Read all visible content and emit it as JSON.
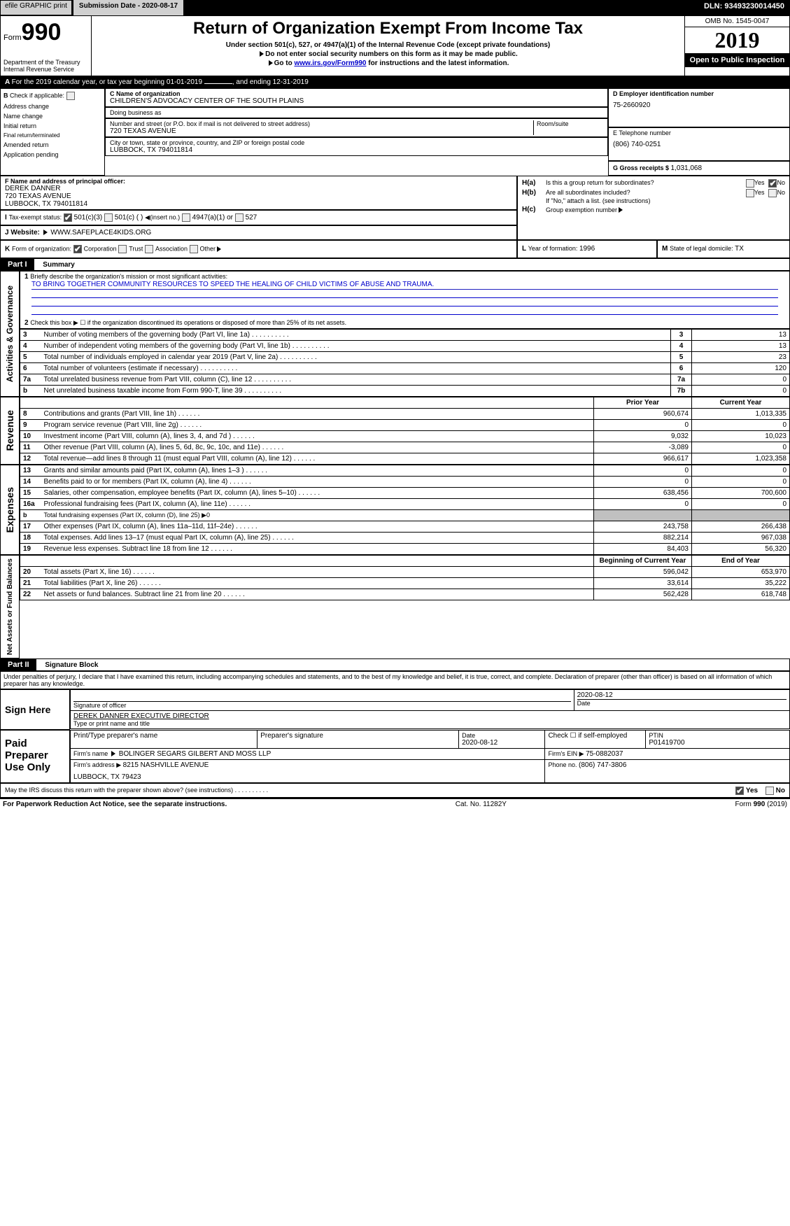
{
  "topbar": {
    "efile": "efile GRAPHIC print",
    "subdate_label": "Submission Date - 2020-08-17",
    "dln_label": "DLN: 93493230014450"
  },
  "formheader": {
    "formword": "Form",
    "formno": "990",
    "dept1": "Department of the Treasury",
    "dept2": "Internal Revenue Service",
    "title": "Return of Organization Exempt From Income Tax",
    "sub1": "Under section 501(c), 527, or 4947(a)(1) of the Internal Revenue Code (except private foundations)",
    "sub2": "Do not enter social security numbers on this form as it may be made public.",
    "sub3_pre": "Go to ",
    "sub3_link": "www.irs.gov/Form990",
    "sub3_post": " for instructions and the latest information.",
    "omb": "OMB No. 1545-0047",
    "year": "2019",
    "open": "Open to Public Inspection"
  },
  "lineA": {
    "text": "For the 2019 calendar year, or tax year beginning 01-01-2019",
    "end": ", and ending 12-31-2019"
  },
  "B": {
    "label": "Check if applicable:",
    "o1": "Address change",
    "o2": "Name change",
    "o3": "Initial return",
    "o4": "Final return/terminated",
    "o5": "Amended return",
    "o6": "Application pending"
  },
  "C": {
    "namelabel": "C Name of organization",
    "name": "CHILDREN'S ADVOCACY CENTER OF THE SOUTH PLAINS",
    "dba": "Doing business as",
    "addrlabel": "Number and street (or P.O. box if mail is not delivered to street address)",
    "roomlabel": "Room/suite",
    "addr": "720 TEXAS AVENUE",
    "citylabel": "City or town, state or province, country, and ZIP or foreign postal code",
    "city": "LUBBOCK, TX  794011814"
  },
  "D": {
    "label": "D Employer identification number",
    "value": "75-2660920"
  },
  "E": {
    "label": "E Telephone number",
    "value": "(806) 740-0251"
  },
  "F": {
    "label": "F Name and address of principal officer:",
    "name": "DEREK DANNER",
    "addr": "720 TEXAS AVENUE",
    "city": "LUBBOCK, TX  794011814"
  },
  "G": {
    "label": "G Gross receipts $ ",
    "value": "1,031,068"
  },
  "H": {
    "a_label": "Is this a group return for subordinates?",
    "b_label": "Are all subordinates included?",
    "b_note": "If \"No,\" attach a list. (see instructions)",
    "c_label": "Group exemption number",
    "yes": "Yes",
    "no": "No",
    "Ha": "H(a)",
    "Hb": "H(b)",
    "Hc": "H(c)"
  },
  "I": {
    "label": "Tax-exempt status:",
    "o1": "501(c)(3)",
    "o2": "501(c) (  )",
    "o2note": "(insert no.)",
    "o3": "4947(a)(1) or",
    "o4": "527"
  },
  "J": {
    "label": "Website:",
    "value": "WWW.SAFEPLACE4KIDS.ORG"
  },
  "K": {
    "label": "Form of organization:",
    "o1": "Corporation",
    "o2": "Trust",
    "o3": "Association",
    "o4": "Other"
  },
  "L": {
    "label": "Year of formation: ",
    "value": "1996"
  },
  "M": {
    "label": "State of legal domicile: ",
    "value": "TX"
  },
  "part1": {
    "label": "Part I",
    "title": "Summary"
  },
  "summary": {
    "l1": "Briefly describe the organization's mission or most significant activities:",
    "l1text": "TO BRING TOGETHER COMMUNITY RESOURCES TO SPEED THE HEALING OF CHILD VICTIMS OF ABUSE AND TRAUMA.",
    "l2": "Check this box ▶ ☐ if the organization discontinued its operations or disposed of more than 25% of its net assets.",
    "rows_ag": [
      {
        "n": "3",
        "t": "Number of voting members of the governing body (Part VI, line 1a)",
        "k": "3",
        "v": "13"
      },
      {
        "n": "4",
        "t": "Number of independent voting members of the governing body (Part VI, line 1b)",
        "k": "4",
        "v": "13"
      },
      {
        "n": "5",
        "t": "Total number of individuals employed in calendar year 2019 (Part V, line 2a)",
        "k": "5",
        "v": "23"
      },
      {
        "n": "6",
        "t": "Total number of volunteers (estimate if necessary)",
        "k": "6",
        "v": "120"
      },
      {
        "n": "7a",
        "t": "Total unrelated business revenue from Part VIII, column (C), line 12",
        "k": "7a",
        "v": "0"
      },
      {
        "n": "b",
        "t": "Net unrelated business taxable income from Form 990-T, line 39",
        "k": "7b",
        "v": "0"
      }
    ],
    "prior": "Prior Year",
    "curr": "Current Year",
    "rows_rev": [
      {
        "n": "8",
        "t": "Contributions and grants (Part VIII, line 1h)",
        "p": "960,674",
        "c": "1,013,335"
      },
      {
        "n": "9",
        "t": "Program service revenue (Part VIII, line 2g)",
        "p": "0",
        "c": "0"
      },
      {
        "n": "10",
        "t": "Investment income (Part VIII, column (A), lines 3, 4, and 7d )",
        "p": "9,032",
        "c": "10,023"
      },
      {
        "n": "11",
        "t": "Other revenue (Part VIII, column (A), lines 5, 6d, 8c, 9c, 10c, and 11e)",
        "p": "-3,089",
        "c": "0"
      },
      {
        "n": "12",
        "t": "Total revenue—add lines 8 through 11 (must equal Part VIII, column (A), line 12)",
        "p": "966,617",
        "c": "1,023,358"
      }
    ],
    "rows_exp": [
      {
        "n": "13",
        "t": "Grants and similar amounts paid (Part IX, column (A), lines 1–3 )",
        "p": "0",
        "c": "0"
      },
      {
        "n": "14",
        "t": "Benefits paid to or for members (Part IX, column (A), line 4)",
        "p": "0",
        "c": "0"
      },
      {
        "n": "15",
        "t": "Salaries, other compensation, employee benefits (Part IX, column (A), lines 5–10)",
        "p": "638,456",
        "c": "700,600"
      },
      {
        "n": "16a",
        "t": "Professional fundraising fees (Part IX, column (A), line 11e)",
        "p": "0",
        "c": "0"
      },
      {
        "n": "b",
        "t": "Total fundraising expenses (Part IX, column (D), line 25) ▶0",
        "p": "",
        "c": "",
        "shaded": true,
        "small": true
      },
      {
        "n": "17",
        "t": "Other expenses (Part IX, column (A), lines 11a–11d, 11f–24e)",
        "p": "243,758",
        "c": "266,438"
      },
      {
        "n": "18",
        "t": "Total expenses. Add lines 13–17 (must equal Part IX, column (A), line 25)",
        "p": "882,214",
        "c": "967,038"
      },
      {
        "n": "19",
        "t": "Revenue less expenses. Subtract line 18 from line 12",
        "p": "84,403",
        "c": "56,320"
      }
    ],
    "boy": "Beginning of Current Year",
    "eoy": "End of Year",
    "rows_na": [
      {
        "n": "20",
        "t": "Total assets (Part X, line 16)",
        "p": "596,042",
        "c": "653,970"
      },
      {
        "n": "21",
        "t": "Total liabilities (Part X, line 26)",
        "p": "33,614",
        "c": "35,222"
      },
      {
        "n": "22",
        "t": "Net assets or fund balances. Subtract line 21 from line 20",
        "p": "562,428",
        "c": "618,748"
      }
    ],
    "vlabels": {
      "ag": "Activities & Governance",
      "rev": "Revenue",
      "exp": "Expenses",
      "na": "Net Assets or Fund Balances"
    }
  },
  "part2": {
    "label": "Part II",
    "title": "Signature Block",
    "perjury": "Under penalties of perjury, I declare that I have examined this return, including accompanying schedules and statements, and to the best of my knowledge and belief, it is true, correct, and complete. Declaration of preparer (other than officer) is based on all information of which preparer has any knowledge."
  },
  "sign": {
    "here": "Sign Here",
    "sig": "Signature of officer",
    "date": "Date",
    "datev": "2020-08-12",
    "name": "DEREK DANNER  EXECUTIVE DIRECTOR",
    "title": "Type or print name and title"
  },
  "paid": {
    "label": "Paid Preparer Use Only",
    "h1": "Print/Type preparer's name",
    "h2": "Preparer's signature",
    "h3": "Date",
    "h3v": "2020-08-12",
    "h4": "Check ☐ if self-employed",
    "h5": "PTIN",
    "h5v": "P01419700",
    "firm": "Firm's name",
    "firmv": "BOLINGER SEGARS GILBERT AND MOSS LLP",
    "ein": "Firm's EIN ▶ ",
    "einv": "75-0882037",
    "addr": "Firm's address ▶ ",
    "addrv": "8215 NASHVILLE AVENUE",
    "city": "LUBBOCK, TX  79423",
    "phone": "Phone no. ",
    "phonev": "(806) 747-3806"
  },
  "discuss": {
    "q": "May the IRS discuss this return with the preparer shown above? (see instructions)",
    "yes": "Yes",
    "no": "No"
  },
  "footer": {
    "left": "For Paperwork Reduction Act Notice, see the separate instructions.",
    "mid": "Cat. No. 11282Y",
    "right": "Form 990 (2019)"
  }
}
